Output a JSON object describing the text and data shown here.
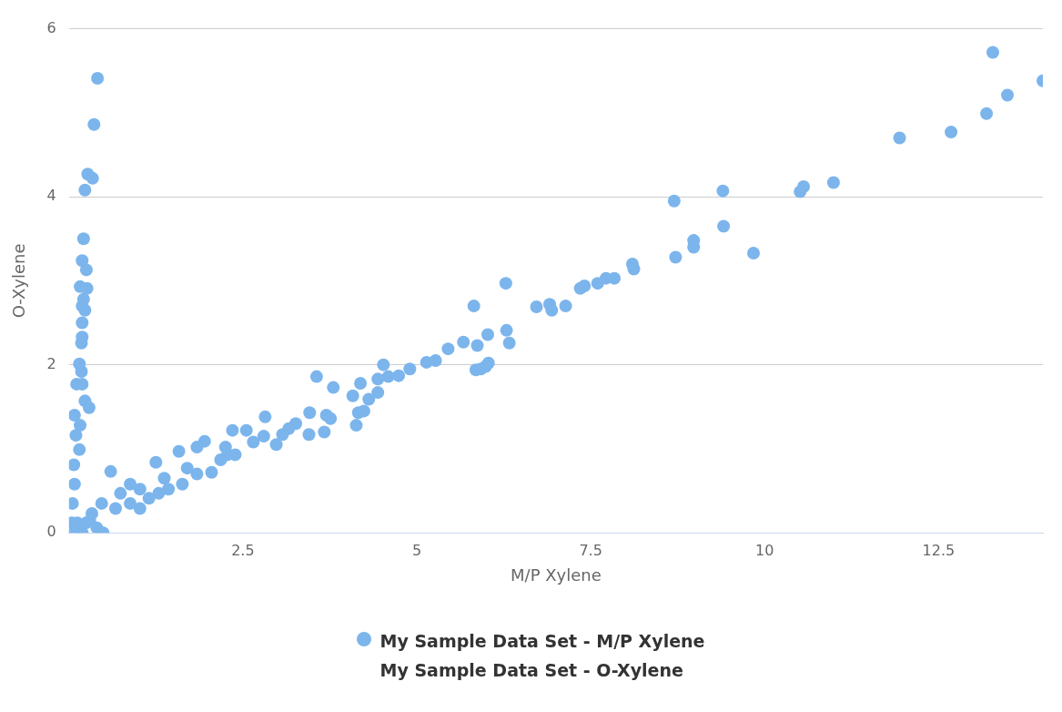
{
  "chart_data": {
    "type": "scatter",
    "xlabel": "M/P Xylene",
    "ylabel": "O-Xylene",
    "xlim": [
      0,
      14
    ],
    "ylim": [
      0,
      6
    ],
    "xticks": [
      2.5,
      5,
      7.5,
      10,
      12.5
    ],
    "yticks": [
      0,
      2,
      4,
      6
    ],
    "grid": "y",
    "legend": "bottom",
    "marker": "circle",
    "series": [
      {
        "name": "My Sample Data Set - M/P Xylene\nMy Sample Data Set - O-Xylene",
        "color": "#7cb5ec",
        "x": [
          13.28,
          14.0,
          13.49,
          13.19,
          12.68,
          11.94,
          10.99,
          10.56,
          10.51,
          9.4,
          8.7,
          9.41,
          8.98,
          8.98,
          8.72,
          9.84,
          8.1,
          8.12,
          7.84,
          7.72,
          7.6,
          7.41,
          7.35,
          6.28,
          5.82,
          6.72,
          6.91,
          6.94,
          7.14,
          6.29,
          6.33,
          6.02,
          5.67,
          5.87,
          5.45,
          5.27,
          5.14,
          6.03,
          5.99,
          5.85,
          5.92,
          4.9,
          4.74,
          4.59,
          4.52,
          4.44,
          4.19,
          3.8,
          3.56,
          4.44,
          4.31,
          4.08,
          4.16,
          4.13,
          4.24,
          3.7,
          3.76,
          3.46,
          3.67,
          3.45,
          3.26,
          3.16,
          3.07,
          2.98,
          2.82,
          2.8,
          2.65,
          2.55,
          2.35,
          2.25,
          2.28,
          1.95,
          1.84,
          1.58,
          2.05,
          1.7,
          1.37,
          1.25,
          1.02,
          0.6,
          0.74,
          0.47,
          0.33,
          0.25,
          0.19,
          0.49,
          0.12,
          0.41,
          0.36,
          0.27,
          0.34,
          0.23,
          0.21,
          0.19,
          0.25,
          0.16,
          0.26,
          0.19,
          0.23,
          0.21,
          0.19,
          0.19,
          0.18,
          0.15,
          0.18,
          0.11,
          0.19,
          0.29,
          0.23,
          0.08,
          0.16,
          0.1,
          0.15,
          0.07,
          0.08,
          0.05,
          0.04,
          0.07,
          0.88,
          1.15,
          1.43,
          1.63,
          1.84,
          2.18,
          2.39,
          0.88,
          0.67,
          1.02,
          1.29,
          0.4,
          0.3
        ],
        "values": [
          5.72,
          5.38,
          5.21,
          4.99,
          4.77,
          4.7,
          4.17,
          4.12,
          4.06,
          4.07,
          3.95,
          3.65,
          3.48,
          3.4,
          3.28,
          3.33,
          3.2,
          3.14,
          3.03,
          3.03,
          2.97,
          2.94,
          2.91,
          2.97,
          2.7,
          2.69,
          2.72,
          2.65,
          2.7,
          2.41,
          2.26,
          2.36,
          2.27,
          2.23,
          2.19,
          2.05,
          2.03,
          2.02,
          1.98,
          1.94,
          1.95,
          1.95,
          1.87,
          1.86,
          2.0,
          1.83,
          1.78,
          1.73,
          1.86,
          1.67,
          1.59,
          1.63,
          1.43,
          1.28,
          1.45,
          1.4,
          1.36,
          1.43,
          1.2,
          1.17,
          1.3,
          1.24,
          1.17,
          1.05,
          1.38,
          1.15,
          1.08,
          1.22,
          1.22,
          1.02,
          0.93,
          1.09,
          1.02,
          0.97,
          0.72,
          0.77,
          0.65,
          0.84,
          0.52,
          0.73,
          0.47,
          0.35,
          0.23,
          0.12,
          0.0,
          0.0,
          0.12,
          5.41,
          4.86,
          4.27,
          4.22,
          4.08,
          3.5,
          3.24,
          3.13,
          2.93,
          2.91,
          2.7,
          2.65,
          2.78,
          2.5,
          2.33,
          2.26,
          2.01,
          1.92,
          1.77,
          1.77,
          1.49,
          1.57,
          1.4,
          1.28,
          1.16,
          0.99,
          0.81,
          0.58,
          0.35,
          0.12,
          0.0,
          0.58,
          0.41,
          0.52,
          0.58,
          0.7,
          0.87,
          0.93,
          0.35,
          0.29,
          0.29,
          0.47,
          0.06,
          0.14
        ]
      }
    ]
  }
}
